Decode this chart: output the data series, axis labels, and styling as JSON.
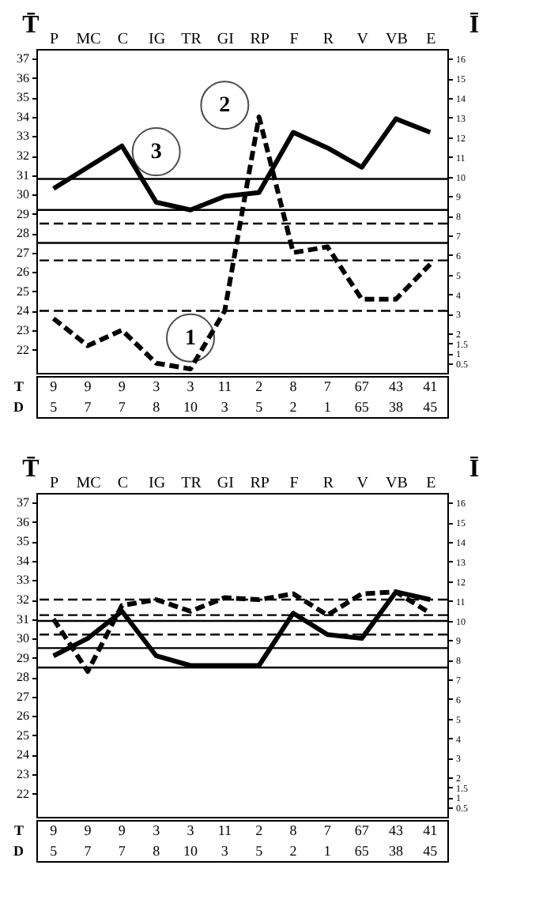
{
  "chart_data": [
    {
      "type": "line",
      "ylabel": "T̄",
      "y2label": "Ī",
      "categories": [
        "P",
        "MC",
        "C",
        "IG",
        "TR",
        "GI",
        "RP",
        "F",
        "R",
        "V",
        "VB",
        "E"
      ],
      "series": [
        {
          "color": "#000000",
          "line_style": "solid",
          "values": [
            30.3,
            31.4,
            32.5,
            29.6,
            29.2,
            29.9,
            30.1,
            33.2,
            32.4,
            31.4,
            33.9,
            33.2
          ]
        },
        {
          "color": "#000000",
          "line_style": "dashed",
          "values": [
            23.6,
            22.2,
            23.0,
            21.3,
            21.0,
            24.0,
            34.0,
            27.0,
            27.3,
            24.6,
            24.6,
            26.4
          ]
        }
      ],
      "ylim": [
        20.8,
        37.5
      ],
      "yticks": [
        22,
        23,
        24,
        25,
        26,
        27,
        28,
        29,
        30,
        31,
        32,
        33,
        34,
        35,
        36,
        37
      ],
      "y2lim": [
        0,
        16.5
      ],
      "y2ticks": [
        0.5,
        1,
        1.5,
        2,
        3,
        4,
        5,
        6,
        7,
        8,
        9,
        10,
        11,
        12,
        13,
        14,
        15,
        16
      ],
      "ref_lines": [
        {
          "axis": "y",
          "value": 30.8,
          "line_style": "solid"
        },
        {
          "axis": "y",
          "value": 29.2,
          "line_style": "solid"
        },
        {
          "axis": "y",
          "value": 27.5,
          "line_style": "solid"
        },
        {
          "axis": "y",
          "value": 28.5,
          "line_style": "dashed"
        },
        {
          "axis": "y",
          "value": 26.6,
          "line_style": "dashed"
        },
        {
          "axis": "y",
          "value": 24,
          "line_style": "dashed"
        }
      ],
      "annotations": [
        {
          "text": "2",
          "x": "GI",
          "y": 34.6
        },
        {
          "text": "3",
          "x": "IG",
          "y": 32.2
        },
        {
          "text": "1",
          "x": "TR",
          "y": 22.6
        },
        "T 9 9 9 3 3 11 2 8 7 67 43 41",
        "D 5 7 7 8 10 3 5 2 1 65 38 45"
      ]
    },
    {
      "type": "line",
      "ylabel": "T̄",
      "y2label": "Ī",
      "categories": [
        "P",
        "MC",
        "C",
        "IG",
        "TR",
        "GI",
        "RP",
        "F",
        "R",
        "V",
        "VB",
        "E"
      ],
      "series": [
        {
          "color": "#000000",
          "line_style": "solid",
          "values": [
            29.1,
            30.0,
            31.4,
            29.1,
            28.6,
            28.6,
            28.6,
            31.3,
            30.2,
            30.0,
            32.4,
            32.0
          ]
        },
        {
          "color": "#000000",
          "line_style": "dashed",
          "values": [
            31.0,
            28.3,
            31.7,
            32.0,
            31.4,
            32.1,
            32.0,
            32.3,
            31.2,
            32.3,
            32.4,
            31.3
          ]
        }
      ],
      "ylim": [
        20.8,
        37.5
      ],
      "yticks": [
        22,
        23,
        24,
        25,
        26,
        27,
        28,
        29,
        30,
        31,
        32,
        33,
        34,
        35,
        36,
        37
      ],
      "y2lim": [
        0,
        16.5
      ],
      "y2ticks": [
        0.5,
        1,
        1.5,
        2,
        3,
        4,
        5,
        6,
        7,
        8,
        9,
        10,
        11,
        12,
        13,
        14,
        15,
        16
      ],
      "ref_lines": [
        {
          "axis": "y",
          "value": 30.9,
          "line_style": "solid"
        },
        {
          "axis": "y",
          "value": 29.5,
          "line_style": "solid"
        },
        {
          "axis": "y",
          "value": 28.5,
          "line_style": "solid"
        },
        {
          "axis": "y",
          "value": 32,
          "line_style": "dashed"
        },
        {
          "axis": "y",
          "value": 31.2,
          "line_style": "dashed"
        },
        {
          "axis": "y",
          "value": 30.2,
          "line_style": "dashed"
        }
      ],
      "annotations": [
        "T 9 9 9 3 3 11 2 8 7 67 43 41",
        "D 5 7 7 8 10 3 5 2 1 65 38 45"
      ]
    }
  ]
}
